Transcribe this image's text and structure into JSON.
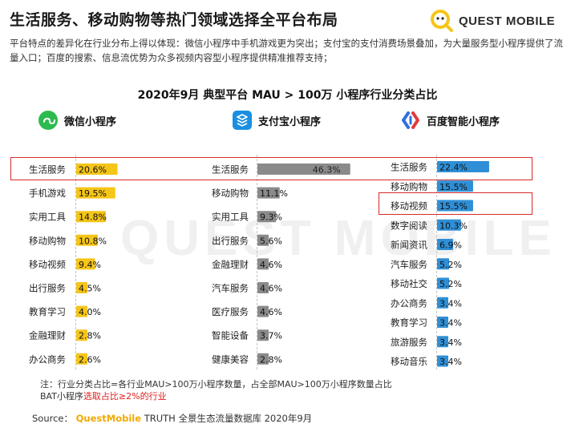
{
  "header": {
    "title": "生活服务、移动购物等热门领域选择全平台布局",
    "intro": "平台特点的差异化在行业分布上得以体现：微信小程序中手机游戏更为突出；支付宝的支付消费场景叠加，为大量服务型小程序提供了流量入口；百度的搜索、信息流优势为众多视频内容型小程序提供精准推荐支持；",
    "logo_text": "QUEST MOBILE"
  },
  "watermark": "QUEST MOBILE",
  "chart_data": {
    "title": "2020年9月 典型平台 MAU > 100万 小程序行业分类占比",
    "type": "bar",
    "orientation": "horizontal",
    "panels": [
      {
        "name": "微信小程序",
        "icon": "wechat-miniprogram-icon",
        "color": "#f5c518",
        "categories": [
          "生活服务",
          "手机游戏",
          "实用工具",
          "移动购物",
          "移动视频",
          "出行服务",
          "教育学习",
          "金融理财",
          "办公商务"
        ],
        "values": [
          20.6,
          19.5,
          14.8,
          10.8,
          9.4,
          4.5,
          4.0,
          2.8,
          2.6
        ],
        "labels": [
          "20.6%",
          "19.5%",
          "14.8%",
          "10.8%",
          "9.4%",
          "4.5%",
          "4.0%",
          "2.8%",
          "2.6%"
        ]
      },
      {
        "name": "支付宝小程序",
        "icon": "alipay-miniprogram-icon",
        "color": "#8a8a8a",
        "categories": [
          "生活服务",
          "移动购物",
          "实用工具",
          "出行服务",
          "金融理财",
          "汽车服务",
          "医疗服务",
          "智能设备",
          "健康美容"
        ],
        "values": [
          46.3,
          11.1,
          9.3,
          5.6,
          4.6,
          4.6,
          4.6,
          3.7,
          2.8
        ],
        "labels": [
          "46.3%",
          "11.1%",
          "9.3%",
          "5.6%",
          "4.6%",
          "4.6%",
          "4.6%",
          "3.7%",
          "2.8%"
        ]
      },
      {
        "name": "百度智能小程序",
        "icon": "baidu-miniprogram-icon",
        "color": "#2f8fd6",
        "categories": [
          "生活服务",
          "移动购物",
          "移动视频",
          "数字阅读",
          "新闻资讯",
          "汽车服务",
          "移动社交",
          "办公商务",
          "教育学习",
          "旅游服务",
          "移动音乐"
        ],
        "values": [
          22.4,
          15.5,
          15.5,
          10.3,
          6.9,
          5.2,
          5.2,
          3.4,
          3.4,
          3.4,
          3.4
        ],
        "labels": [
          "22.4%",
          "15.5%",
          "15.5%",
          "10.3%",
          "6.9%",
          "5.2%",
          "5.2%",
          "3.4%",
          "3.4%",
          "3.4%",
          "3.4%"
        ]
      }
    ],
    "highlights": [
      "生活服务",
      "移动视频"
    ]
  },
  "footer": {
    "note_line1": "注：行业分类占比=各行业MAU>100万小程序数量，占全部MAU>100万小程序数量占比",
    "note_line2_prefix": "BAT小程序",
    "note_line2_highlight": "选取占比≥2%的行业",
    "source_label": "Source：",
    "source_brand": "QuestMobile",
    "source_text": "TRUTH 全景生态流量数据库 2020年9月"
  },
  "colors": {
    "accent_yellow": "#f5c518",
    "alipay_gray": "#8a8a8a",
    "baidu_blue": "#2f8fd6",
    "highlight_red": "#d62a2a"
  }
}
